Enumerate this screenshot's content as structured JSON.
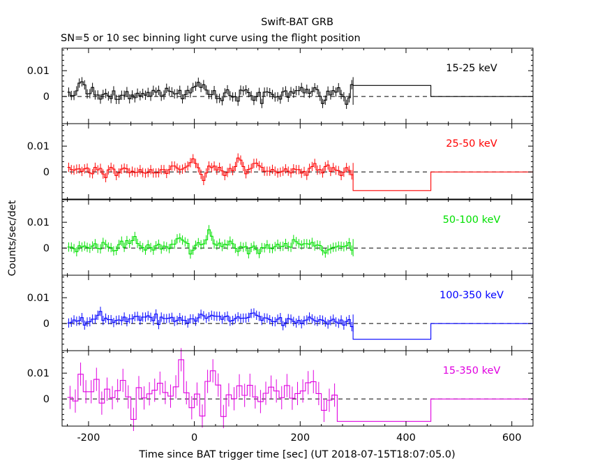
{
  "figure": {
    "title": "Swift-BAT GRB",
    "subtitle": "SN=5 or 10 sec binning light curve using the flight position",
    "xlabel": "Time since BAT trigger time [sec] (UT 2018-07-15T18:07:05.0)",
    "ylabel": "Counts/sec/det"
  },
  "chart_data": [
    {
      "type": "line",
      "name": "15-25 keV",
      "color": "#000000",
      "xlim": [
        -250,
        640
      ],
      "ylim": [
        -0.0105,
        0.0187
      ],
      "xticks": [
        -200,
        0,
        200,
        400,
        600
      ],
      "xtick_labels": [
        "",
        "",
        "",
        "",
        ""
      ],
      "yticks": [
        0,
        0.01
      ],
      "ytick_labels": [
        "0",
        "0.01"
      ],
      "reference_line": 0,
      "bin_width": 5,
      "x_start": -240,
      "values": [
        0.0017,
        0.0004,
        0.0004,
        0.0022,
        0.0052,
        0.0057,
        0.0045,
        0.001,
        0.0011,
        0.0035,
        0.0006,
        0.0006,
        -0.001,
        0.0008,
        0.0012,
        0.0002,
        -0.0008,
        0.0022,
        -0.0011,
        -0.0011,
        0.0005,
        0.0005,
        0.0019,
        -0.0009,
        0.0006,
        -0.0005,
        0.0013,
        0.0003,
        0.0012,
        0.0005,
        0.0016,
        0.0001,
        0.0024,
        0.0017,
        0.0024,
        0.0001,
        0.0006,
        0.0032,
        0.0021,
        0.0018,
        0.001,
        0.0011,
        0.0024,
        -0.0009,
        0.0007,
        0.0024,
        0.0014,
        0.0035,
        0.004,
        0.0055,
        0.0035,
        0.0046,
        0.0025,
        0.0008,
        0.0007,
        0.0023,
        -0.0008,
        -0.0007,
        -0.0016,
        0.0014,
        0.0026,
        0.0003,
        -0.0002,
        -0.0001,
        -0.0018,
        0.0025,
        0.0022,
        0.0026,
        0.0015,
        0.0003,
        -0.0015,
        -0.0001,
        0.0016,
        -0.0027,
        0.0017,
        0.0018,
        0.0015,
        0.0008,
        -0.0002,
        -0.0001,
        -0.001,
        0.0018,
        0.0022,
        -0.0003,
        0.0019,
        0.0013,
        0.0023,
        0.0023,
        0.0035,
        0.0014,
        0.0028,
        0.0012,
        0.0019,
        0.0034,
        0.0026,
        0.0001,
        -0.0027,
        -0.0014,
        0.0021,
        0.0006,
        0.0023,
        0.0017,
        0.0034,
        0.0008,
        -0.0001,
        -0.003,
        -0.0005,
        0.0046
      ],
      "late_bins": [
        {
          "x0": 275,
          "x1": 447,
          "y": 0.0043
        },
        {
          "x0": 447,
          "x1": 640,
          "y": 0.0
        }
      ]
    },
    {
      "type": "line",
      "name": "25-50 keV",
      "color": "#ff0000",
      "xlim": [
        -250,
        640
      ],
      "ylim": [
        -0.0105,
        0.0187
      ],
      "xticks": [
        -200,
        0,
        200,
        400,
        600
      ],
      "xtick_labels": [
        "",
        "",
        "",
        "",
        ""
      ],
      "yticks": [
        0,
        0.01
      ],
      "ytick_labels": [
        "0",
        "0.01"
      ],
      "reference_line": 0,
      "bin_width": 5,
      "x_start": -240,
      "values": [
        0.0018,
        0.0009,
        0.0007,
        0.0011,
        0.0012,
        0.0002,
        0.0012,
        0.0015,
        -0.0004,
        -0.0007,
        0.0018,
        0.0008,
        0.0014,
        -0.0008,
        -0.0022,
        0.0008,
        0.0018,
        0.0011,
        -0.0014,
        -0.0004,
        0.0011,
        0.0015,
        0.0012,
        -0.0003,
        0.0003,
        -0.0002,
        -0.0001,
        0.0009,
        -0.0002,
        -0.0005,
        -0.0002,
        0.0009,
        -0.0004,
        -0.0004,
        -0.0003,
        0.0009,
        0.0009,
        -0.0006,
        0.0009,
        0.0023,
        0.0023,
        0.0015,
        0.0008,
        0.0011,
        0.0017,
        0.0023,
        0.0036,
        0.0051,
        0.0033,
        0.0016,
        -0.0009,
        -0.0033,
        -0.0004,
        0.0023,
        0.0017,
        0.0023,
        0.0007,
        0.0018,
        0.0004,
        -0.0014,
        -0.0002,
        0.0014,
        0.0005,
        0.0021,
        0.0054,
        0.0046,
        0.0021,
        -0.0007,
        0.001,
        0.0014,
        0.0033,
        0.0034,
        0.0024,
        0.0018,
        0.0003,
        0.0003,
        0.0003,
        0.001,
        0.0003,
        -0.0004,
        -0.0001,
        0.0003,
        0.0012,
        0.0003,
        -0.0004,
        0.0012,
        0.0009,
        0.0009,
        -0.0005,
        0.0002,
        -0.0013,
        0.0014,
        0.0021,
        0.0033,
        0.0007,
        0.0009,
        -0.0004,
        0.0021,
        0.0027,
        0.0002,
        0.0017,
        0.0007,
        0.0005,
        -0.0014,
        -0.0001,
        0.0017,
        0.0006,
        -0.0011
      ],
      "late_bins": [
        {
          "x0": 275,
          "x1": 447,
          "y": -0.0072
        },
        {
          "x0": 447,
          "x1": 640,
          "y": 0.0
        }
      ]
    },
    {
      "type": "line",
      "name": "50-100 keV",
      "color": "#00e000",
      "xlim": [
        -250,
        640
      ],
      "ylim": [
        -0.0105,
        0.0187
      ],
      "xticks": [
        -200,
        0,
        200,
        400,
        600
      ],
      "xtick_labels": [
        "",
        "",
        "",
        "",
        ""
      ],
      "yticks": [
        0,
        0.01
      ],
      "ytick_labels": [
        "0",
        "0.01"
      ],
      "reference_line": 0,
      "bin_width": 5,
      "x_start": -240,
      "values": [
        0.0004,
        0.0004,
        -0.0002,
        -0.0014,
        0.0009,
        0.0004,
        0.0008,
        0.0003,
        -0.0001,
        0.0008,
        0.0017,
        -0.0001,
        -0.0003,
        0.0022,
        0.0014,
        0.0004,
        0.0002,
        -0.0011,
        -0.0009,
        0.0014,
        0.0027,
        0.0003,
        0.0029,
        0.0018,
        0.0029,
        0.0045,
        0.0018,
        0.0009,
        0.0002,
        -0.0008,
        0.0013,
        0.0002,
        -0.0008,
        0.0009,
        0.0015,
        -0.0004,
        0.0008,
        0.0005,
        -0.0002,
        0.0015,
        0.0015,
        0.0036,
        0.0039,
        0.0031,
        0.0024,
        0.0018,
        -0.0023,
        -0.0008,
        0.0011,
        0.0021,
        0.0013,
        0.0016,
        0.0032,
        0.0071,
        0.0046,
        0.0016,
        0.0011,
        0.0019,
        0.0006,
        0.0015,
        0.0012,
        0.0027,
        0.0017,
        -0.0001,
        -0.0013,
        0.0006,
        0.0003,
        0.0006,
        -0.0022,
        0.0002,
        0.0008,
        -0.0006,
        -0.0021,
        0.0002,
        0.0001,
        0.0013,
        -0.0001,
        -0.0002,
        0.0006,
        0.0015,
        0.0006,
        0.0007,
        0.0018,
        0.0006,
        0.0003,
        0.0033,
        0.0025,
        0.0017,
        0.0012,
        0.0017,
        0.0017,
        0.0015,
        0.0022,
        0.0008,
        0.0012,
        0.001,
        -0.001,
        -0.0019,
        -0.0007,
        -0.0003,
        0.0003,
        0.0004,
        0.0008,
        0.0007,
        0.0005,
        0.0009,
        0.0021,
        -0.0008
      ],
      "late_bins": []
    },
    {
      "type": "line",
      "name": "100-350 keV",
      "color": "#0000ff",
      "xlim": [
        -250,
        640
      ],
      "ylim": [
        -0.0105,
        0.0187
      ],
      "xticks": [
        -200,
        0,
        200,
        400,
        600
      ],
      "xtick_labels": [
        "",
        "",
        "",
        "",
        ""
      ],
      "yticks": [
        0,
        0.01
      ],
      "ytick_labels": [
        "0",
        "0.01"
      ],
      "reference_line": 0,
      "bin_width": 5,
      "x_start": -240,
      "values": [
        0.0002,
        0.0005,
        0.0014,
        0.0009,
        0.0011,
        0.0023,
        -0.0006,
        0.0006,
        0.0007,
        0.0017,
        0.0017,
        0.0032,
        0.0047,
        0.0012,
        0.0021,
        0.0015,
        0.0015,
        0.0004,
        0.0012,
        0.0014,
        0.0011,
        0.0025,
        0.0007,
        0.0018,
        0.0018,
        0.0027,
        0.0028,
        0.0013,
        0.0025,
        0.0025,
        0.003,
        0.0024,
        0.0011,
        0.0037,
        -0.0004,
        0.0025,
        0.0019,
        0.0019,
        0.0021,
        0.0024,
        0.0008,
        0.0012,
        0.0023,
        0.0013,
        0.0012,
        0.0002,
        0.0018,
        0.0018,
        0.0009,
        0.0022,
        0.0036,
        0.003,
        0.002,
        0.0026,
        0.0032,
        0.0029,
        0.0028,
        0.0028,
        0.0016,
        0.0026,
        0.0029,
        0.0009,
        0.0012,
        0.0019,
        0.0026,
        0.002,
        0.0021,
        0.0021,
        0.0024,
        0.0039,
        0.0041,
        0.0032,
        0.0028,
        0.0012,
        0.0022,
        0.0021,
        0.0015,
        0.0008,
        0.0007,
        0.0017,
        0.0023,
        -0.0008,
        0.0003,
        0.0019,
        0.0017,
        0.0008,
        0.0002,
        0.0012,
        -0.0001,
        0.0011,
        0.0014,
        0.0025,
        0.0018,
        0.0011,
        0.0008,
        0.0015,
        0.0013,
        0.0006,
        -0.0002,
        0.0011,
        0.0017,
        0.0006,
        0.0001,
        0.0014,
        -0.0006,
        0.0008,
        0.0015,
        -0.0012
      ],
      "late_bins": [
        {
          "x0": 275,
          "x1": 447,
          "y": -0.0061
        },
        {
          "x0": 447,
          "x1": 640,
          "y": 0.0
        }
      ]
    },
    {
      "type": "line",
      "name": "15-350 keV",
      "color": "#e000e0",
      "xlim": [
        -250,
        640
      ],
      "ylim": [
        -0.0105,
        0.0187
      ],
      "xticks": [
        -200,
        0,
        200,
        400,
        600
      ],
      "xtick_labels": [
        "-200",
        "0",
        "200",
        "400",
        "600"
      ],
      "yticks": [
        0,
        0.01
      ],
      "ytick_labels": [
        "0",
        "0.01"
      ],
      "reference_line": 0,
      "bin_width": 10,
      "x_start": -240,
      "values": [
        0.0006,
        -0.0008,
        0.0096,
        0.0028,
        0.0028,
        0.0076,
        -0.0016,
        0.0038,
        0.0005,
        0.0032,
        0.0072,
        0.0008,
        -0.0079,
        0.0044,
        0.0004,
        0.002,
        0.0034,
        0.0061,
        0.0025,
        0.0011,
        0.0047,
        0.0152,
        0.0024,
        -0.0034,
        0.0019,
        -0.0066,
        0.0068,
        0.0109,
        0.0054,
        -0.0068,
        0.0016,
        0.0001,
        0.0051,
        0.0014,
        0.0053,
        0.0008,
        -0.001,
        0.0022,
        0.0046,
        0.0031,
        0.0005,
        0.0052,
        0.0003,
        0.0021,
        0.0031,
        0.0063,
        0.0067,
        0.0021,
        -0.0044,
        -0.0005,
        0.0015
      ],
      "late_bins": [
        {
          "x0": 275,
          "x1": 447,
          "y": -0.0087
        },
        {
          "x0": 447,
          "x1": 640,
          "y": 0.0
        }
      ]
    }
  ]
}
